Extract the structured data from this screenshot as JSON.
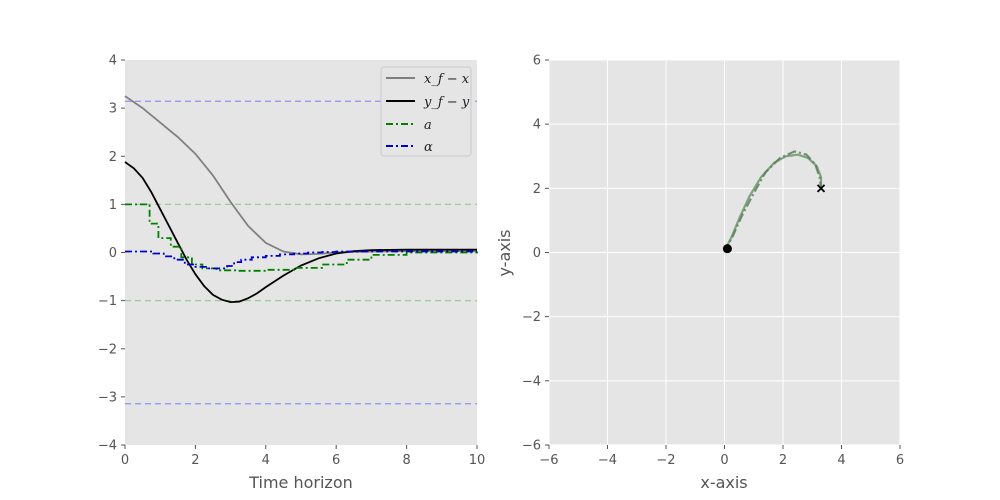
{
  "chart_data": [
    {
      "type": "line",
      "xlabel": "Time horizon",
      "ylabel": "",
      "xlim": [
        0,
        10
      ],
      "ylim": [
        -4,
        4
      ],
      "xticks": [
        0,
        2,
        4,
        6,
        8,
        10
      ],
      "yticks": [
        -4,
        -3,
        -2,
        -1,
        0,
        1,
        2,
        3,
        4
      ],
      "xtick_labels": [
        "0",
        "2",
        "4",
        "6",
        "8",
        "10"
      ],
      "ytick_labels": [
        "−4",
        "−3",
        "−2",
        "−1",
        "0",
        "1",
        "2",
        "3",
        "4"
      ],
      "grid": false,
      "legend": "top-right",
      "series": [
        {
          "name": "x_f − x",
          "color": "#808080",
          "style": "solid",
          "x": [
            0,
            0.5,
            1,
            1.5,
            2,
            2.5,
            3,
            3.5,
            4,
            4.5,
            5,
            5.5,
            6,
            7,
            8,
            9,
            10
          ],
          "y": [
            3.25,
            3.0,
            2.7,
            2.4,
            2.05,
            1.6,
            1.05,
            0.55,
            0.2,
            0.02,
            -0.04,
            -0.03,
            0.0,
            0.02,
            0.03,
            0.03,
            0.03
          ]
        },
        {
          "name": "y_f − y",
          "color": "#000000",
          "style": "solid",
          "x": [
            0,
            0.25,
            0.5,
            0.75,
            1,
            1.25,
            1.5,
            1.75,
            2,
            2.25,
            2.5,
            2.75,
            3,
            3.25,
            3.5,
            3.75,
            4,
            4.5,
            5,
            5.5,
            6,
            6.5,
            7,
            8,
            9,
            10
          ],
          "y": [
            1.88,
            1.75,
            1.55,
            1.25,
            0.9,
            0.55,
            0.2,
            -0.15,
            -0.45,
            -0.7,
            -0.88,
            -0.98,
            -1.03,
            -1.02,
            -0.95,
            -0.85,
            -0.72,
            -0.48,
            -0.27,
            -0.12,
            -0.02,
            0.03,
            0.05,
            0.06,
            0.06,
            0.06
          ]
        },
        {
          "name": "a",
          "color": "#008000",
          "style": "dashdot-step",
          "x": [
            0,
            0.7,
            0.95,
            1.3,
            1.6,
            1.9,
            2.2,
            2.6,
            3.2,
            4.0,
            4.8,
            5.6,
            6.3,
            7.0,
            8.0,
            10
          ],
          "y": [
            1.0,
            0.6,
            0.3,
            0.12,
            -0.1,
            -0.25,
            -0.33,
            -0.37,
            -0.38,
            -0.36,
            -0.32,
            -0.25,
            -0.15,
            -0.05,
            0.0,
            0.02
          ]
        },
        {
          "name": "α",
          "color": "#0000cc",
          "style": "dashdot-step",
          "x": [
            0,
            0.4,
            0.8,
            1.1,
            1.4,
            1.7,
            2.0,
            2.3,
            2.6,
            2.9,
            3.1,
            3.3,
            3.6,
            4.0,
            4.4,
            4.8,
            5.2,
            5.6,
            6.0,
            6.5,
            7.0,
            10
          ],
          "y": [
            0.02,
            0.02,
            -0.02,
            -0.08,
            -0.15,
            -0.25,
            -0.3,
            -0.33,
            -0.33,
            -0.28,
            -0.2,
            -0.15,
            -0.1,
            -0.07,
            -0.04,
            -0.02,
            0.0,
            0.01,
            0.02,
            0.02,
            0.02,
            0.02
          ]
        }
      ],
      "reference_lines": [
        {
          "y": 3.1416,
          "color": "#9999ee"
        },
        {
          "y": -3.1416,
          "color": "#9999ee"
        },
        {
          "y": 1.0,
          "color": "#99cc99"
        },
        {
          "y": -1.0,
          "color": "#99cc99"
        }
      ]
    },
    {
      "type": "line",
      "xlabel": "x-axis",
      "ylabel": "y-axis",
      "xlim": [
        -6,
        6
      ],
      "ylim": [
        -6,
        6
      ],
      "xticks": [
        -6,
        -4,
        -2,
        0,
        2,
        4,
        6
      ],
      "yticks": [
        -6,
        -4,
        -2,
        0,
        2,
        4,
        6
      ],
      "xtick_labels": [
        "−6",
        "−4",
        "−2",
        "0",
        "2",
        "4",
        "6"
      ],
      "ytick_labels": [
        "−6",
        "−4",
        "−2",
        "0",
        "2",
        "4",
        "6"
      ],
      "grid": true,
      "series": [
        {
          "color": "#6b9a6b",
          "style": "solid",
          "x": [
            0.0,
            0.25,
            0.5,
            0.85,
            1.25,
            1.7,
            2.1,
            2.5,
            2.85,
            3.15,
            3.3,
            3.3
          ],
          "y": [
            0.05,
            0.5,
            1.05,
            1.75,
            2.35,
            2.8,
            3.0,
            3.05,
            2.95,
            2.7,
            2.35,
            2.0
          ]
        },
        {
          "color": "#5f7f5f",
          "style": "dashdot",
          "x": [
            0.0,
            0.3,
            0.6,
            1.0,
            1.4,
            1.9,
            2.4,
            2.8,
            3.1,
            3.25,
            3.3
          ],
          "y": [
            0.0,
            0.55,
            1.15,
            1.85,
            2.5,
            2.95,
            3.15,
            3.05,
            2.75,
            2.35,
            2.0
          ]
        }
      ],
      "start_point": {
        "x": 0.1,
        "y": 0.12
      },
      "goal_point": {
        "x": 3.3,
        "y": 2.0
      }
    }
  ]
}
